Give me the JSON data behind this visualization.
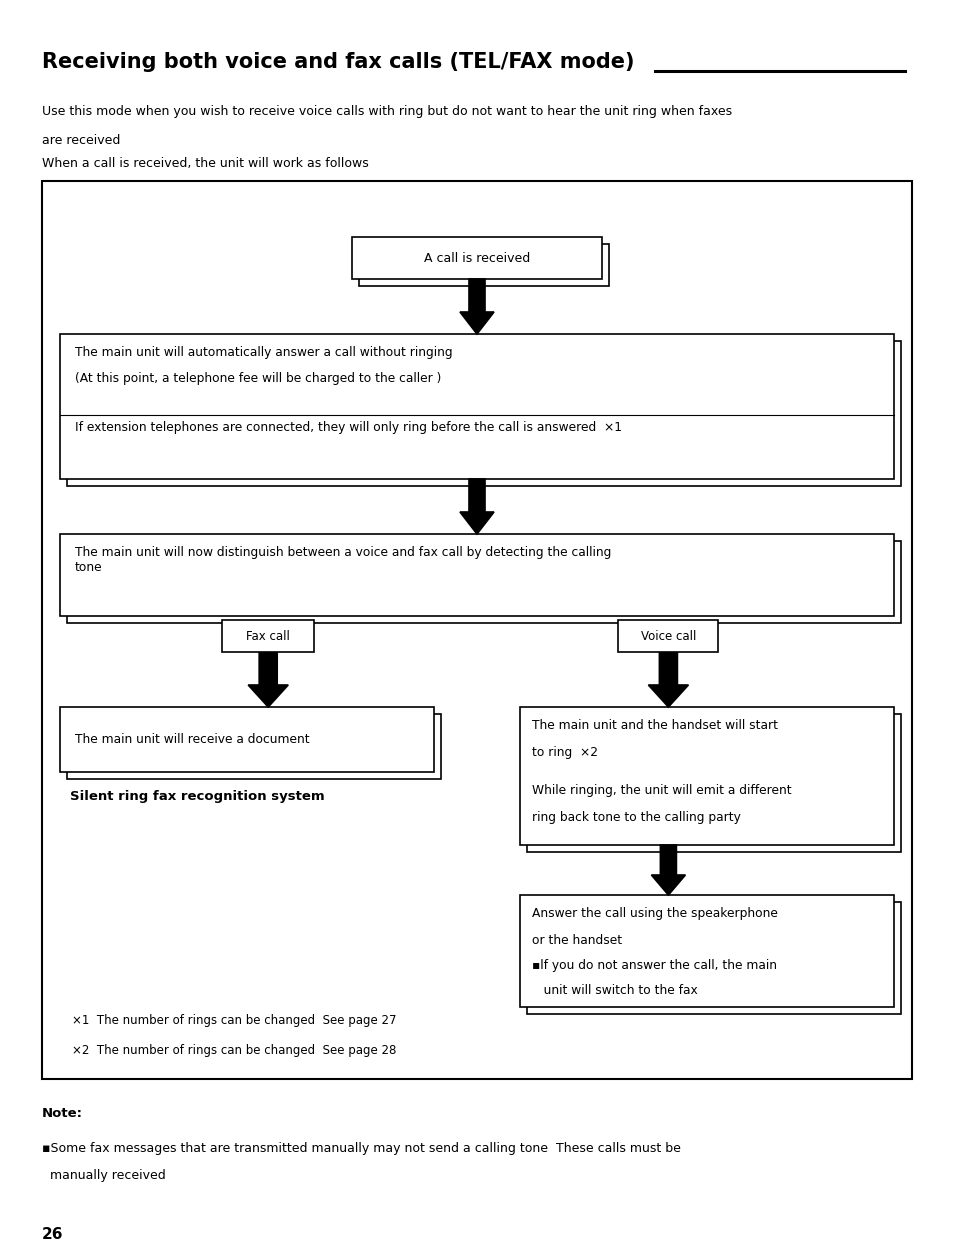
{
  "page_width": 9.54,
  "page_height": 12.57,
  "bg_color": "#ffffff",
  "title": "Receiving both voice and fax calls (TEL/FAX mode)",
  "title_fontsize": 15,
  "subtitle1": "Use this mode when you wish to receive voice calls with ring but do not want to hear the unit ring when faxes",
  "subtitle2": "are received",
  "subtitle3": "When a call is received, the unit will work as follows",
  "subtitle_fontsize": 9,
  "box1_text": "A call is received",
  "box2_line1": "The main unit will automatically answer a call without ringing",
  "box2_line2": "(At this point, a telephone fee will be charged to the caller )",
  "box2_line4": "If extension telephones are connected, they will only ring before the call is answered  ×1",
  "box3_text": "The main unit will now distinguish between a voice and fax call by detecting the calling\ntone",
  "fax_label": "Fax call",
  "voice_label": "Voice call",
  "box4_text": "The main unit will receive a document",
  "silent_text": "Silent ring fax recognition system",
  "box5_line1": "The main unit and the handset will start",
  "box5_line2": "to ring  ×2",
  "box5_line3": "",
  "box5_line4": "While ringing, the unit will emit a different",
  "box5_line5": "ring back tone to the calling party",
  "box6_line1": "Answer the call using the speakerphone",
  "box6_line2": "or the handset",
  "box6_line3": "▪lf you do not answer the call, the main",
  "box6_line4": "   unit will switch to the fax",
  "footnote1": "×1  The number of rings can be changed  See page 27",
  "footnote2": "×2  The number of rings can be changed  See page 28",
  "note_label": "Note:",
  "note_line1": "▪Some fax messages that are transmitted manually may not send a calling tone  These calls must be",
  "note_line2": "  manually received",
  "page_num": "26",
  "text_color": "#000000"
}
